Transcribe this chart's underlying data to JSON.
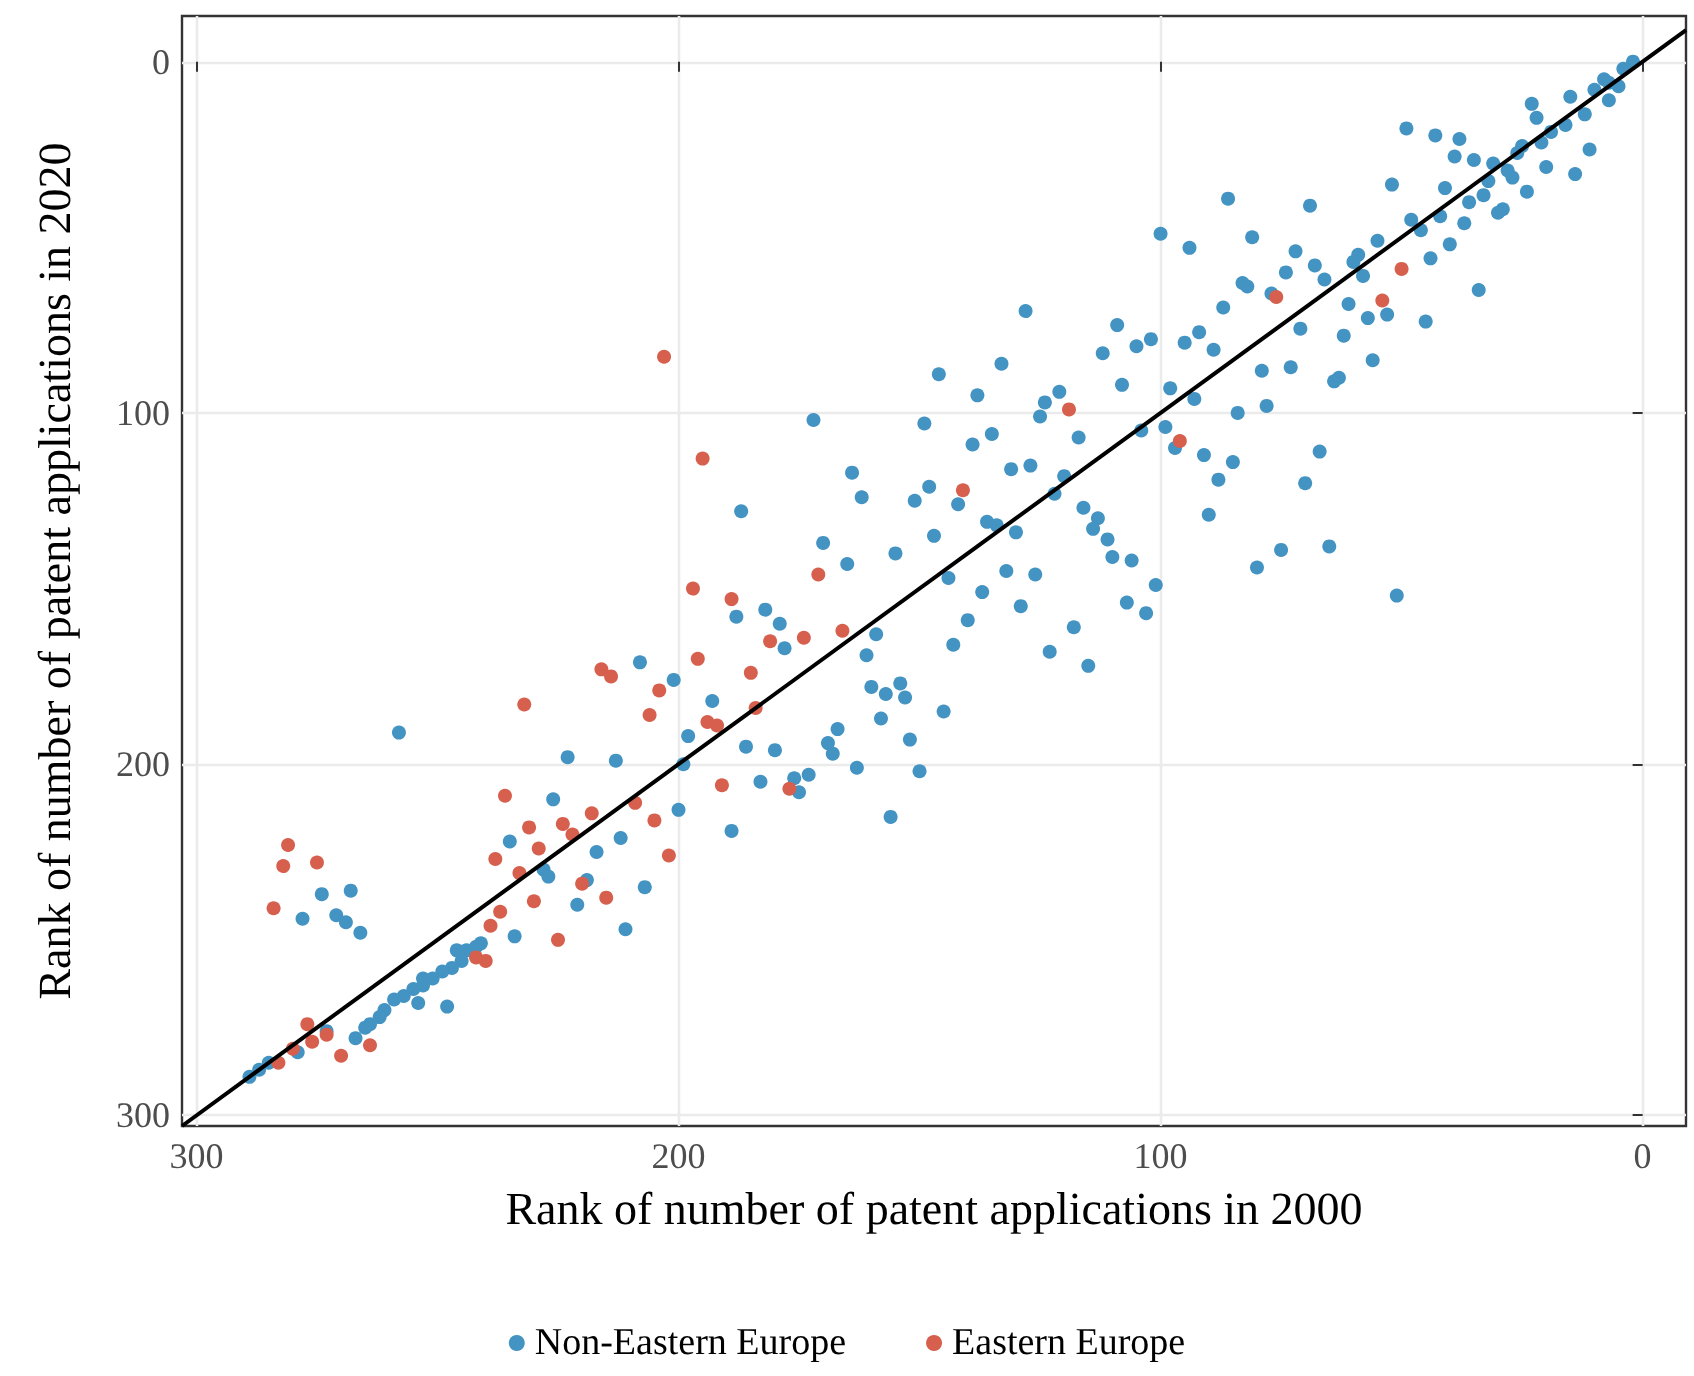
{
  "chart_data": {
    "type": "scatter",
    "xlabel": "Rank of number of patent applications in 2000",
    "ylabel": "Rank of number of patent applications in 2020",
    "xlim": [
      303,
      -9
    ],
    "ylim": [
      303,
      -13
    ],
    "xticks": [
      300,
      200,
      100,
      0
    ],
    "yticks": [
      0,
      100,
      200,
      300
    ],
    "grid": true,
    "legend": "bottom",
    "marker": "circle",
    "series": [
      {
        "name": "Non-Eastern Europe",
        "color": "#4393c3",
        "x": [
          100,
          94,
          128,
          109,
          102,
          105,
          95,
          112,
          133,
          146,
          108,
          98,
          138,
          121,
          124,
          125,
          172,
          149,
          99,
          117,
          97,
          135,
          139,
          104,
          164,
          131,
          127,
          120,
          162,
          148,
          151,
          142,
          122,
          187,
          116,
          113,
          114,
          136,
          134,
          147,
          130,
          111,
          170,
          155,
          110,
          106,
          165,
          132,
          126,
          2,
          4,
          8,
          7,
          5,
          10,
          7,
          15,
          23,
          12,
          22,
          16,
          19,
          21,
          11,
          25,
          26,
          49,
          43,
          38,
          39,
          35,
          31,
          20,
          28,
          27,
          14,
          32,
          24,
          41,
          33,
          36,
          29,
          30,
          52,
          86,
          69,
          48,
          42,
          46,
          37,
          40,
          81,
          55,
          72,
          59,
          60,
          68,
          44,
          74,
          58,
          66,
          83,
          82,
          77,
          34,
          61,
          87,
          53,
          57,
          45,
          92,
          71,
          62,
          89,
          56,
          79,
          73,
          63,
          64,
          93,
          84,
          78,
          91,
          85,
          67,
          88,
          70,
          90,
          75,
          65,
          80,
          208,
          201,
          258,
          198,
          223,
          213,
          200,
          226,
          235,
          212,
          217,
          228,
          227,
          219,
          207,
          221,
          211,
          274,
          268,
          278,
          271,
          269,
          266,
          234,
          246,
          244,
          242,
          241,
          245,
          247,
          249,
          251,
          253,
          253,
          255,
          257,
          259,
          254,
          248,
          261,
          262,
          264,
          265,
          267,
          273,
          279,
          285,
          287,
          289,
          188,
          182,
          179,
          178,
          159,
          161,
          193,
          186,
          180,
          199,
          183,
          176,
          175,
          173,
          189,
          160,
          157,
          158,
          154,
          153,
          167,
          169,
          168,
          163,
          152,
          150,
          156,
          145,
          144,
          137,
          140,
          143,
          129,
          123,
          118,
          115,
          107,
          103,
          101,
          51
        ],
        "values": [
          49,
          53,
          71,
          75,
          79,
          81,
          80,
          83,
          86,
          89,
          92,
          93,
          95,
          94,
          97,
          101,
          102,
          103,
          104,
          107,
          110,
          106,
          109,
          105,
          117,
          116,
          115,
          118,
          124,
          121,
          125,
          126,
          123,
          128,
          127,
          130,
          133,
          131,
          132,
          135,
          134,
          136,
          137,
          140,
          141,
          142,
          143,
          145,
          146,
          0,
          2,
          5,
          6,
          7,
          8,
          11,
          10,
          12,
          15,
          16,
          18,
          20,
          23,
          25,
          24,
          26,
          19,
          21,
          22,
          27,
          28,
          29,
          30,
          31,
          33,
          32,
          34,
          37,
          36,
          38,
          40,
          42,
          43,
          35,
          39,
          41,
          45,
          44,
          48,
          46,
          52,
          50,
          51,
          54,
          55,
          57,
          58,
          56,
          60,
          61,
          62,
          63,
          64,
          66,
          65,
          69,
          70,
          72,
          73,
          74,
          77,
          76,
          78,
          82,
          85,
          88,
          87,
          90,
          91,
          96,
          100,
          98,
          112,
          114,
          111,
          119,
          120,
          129,
          139,
          138,
          144,
          171,
          176,
          191,
          192,
          198,
          199,
          213,
          210,
          222,
          221,
          225,
          230,
          232,
          233,
          235,
          240,
          247,
          237,
          236,
          244,
          243,
          245,
          248,
          249,
          253,
          253,
          252,
          251,
          256,
          258,
          259,
          261,
          261,
          263,
          264,
          266,
          267,
          268,
          269,
          270,
          272,
          274,
          275,
          278,
          276,
          282,
          285,
          287,
          289,
          158,
          156,
          160,
          167,
          163,
          169,
          182,
          195,
          196,
          200,
          205,
          204,
          208,
          203,
          219,
          178,
          180,
          187,
          177,
          181,
          190,
          194,
          197,
          201,
          193,
          202,
          215,
          185,
          147,
          151,
          159,
          166,
          155,
          168,
          161,
          172,
          154,
          157,
          149,
          152
        ]
      },
      {
        "name": "Eastern Europe",
        "color": "#d6604d",
        "x": [
          119,
          96,
          195,
          141,
          171,
          50,
          76,
          54,
          216,
          214,
          204,
          206,
          232,
          236,
          218,
          209,
          205,
          224,
          231,
          222,
          229,
          202,
          238,
          233,
          220,
          215,
          230,
          281,
          282,
          275,
          284,
          237,
          239,
          225,
          242,
          240,
          264,
          273,
          277,
          276,
          270,
          280,
          283,
          197,
          189,
          181,
          174,
          166,
          196,
          185,
          184,
          194,
          192,
          191,
          177,
          203
        ],
        "values": [
          99,
          108,
          113,
          122,
          146,
          59,
          67,
          68,
          173,
          175,
          179,
          186,
          183,
          209,
          214,
          211,
          216,
          217,
          218,
          220,
          224,
          226,
          227,
          231,
          234,
          238,
          239,
          223,
          229,
          228,
          241,
          242,
          246,
          250,
          255,
          256,
          280,
          277,
          274,
          279,
          283,
          281,
          285,
          150,
          153,
          165,
          164,
          162,
          170,
          174,
          184,
          188,
          189,
          206,
          207,
          84
        ]
      },
      {
        "type": "line",
        "color": "#000000",
        "x": [
          -9,
          303
        ],
        "values": [
          -9,
          303
        ],
        "marker": "none"
      }
    ]
  }
}
